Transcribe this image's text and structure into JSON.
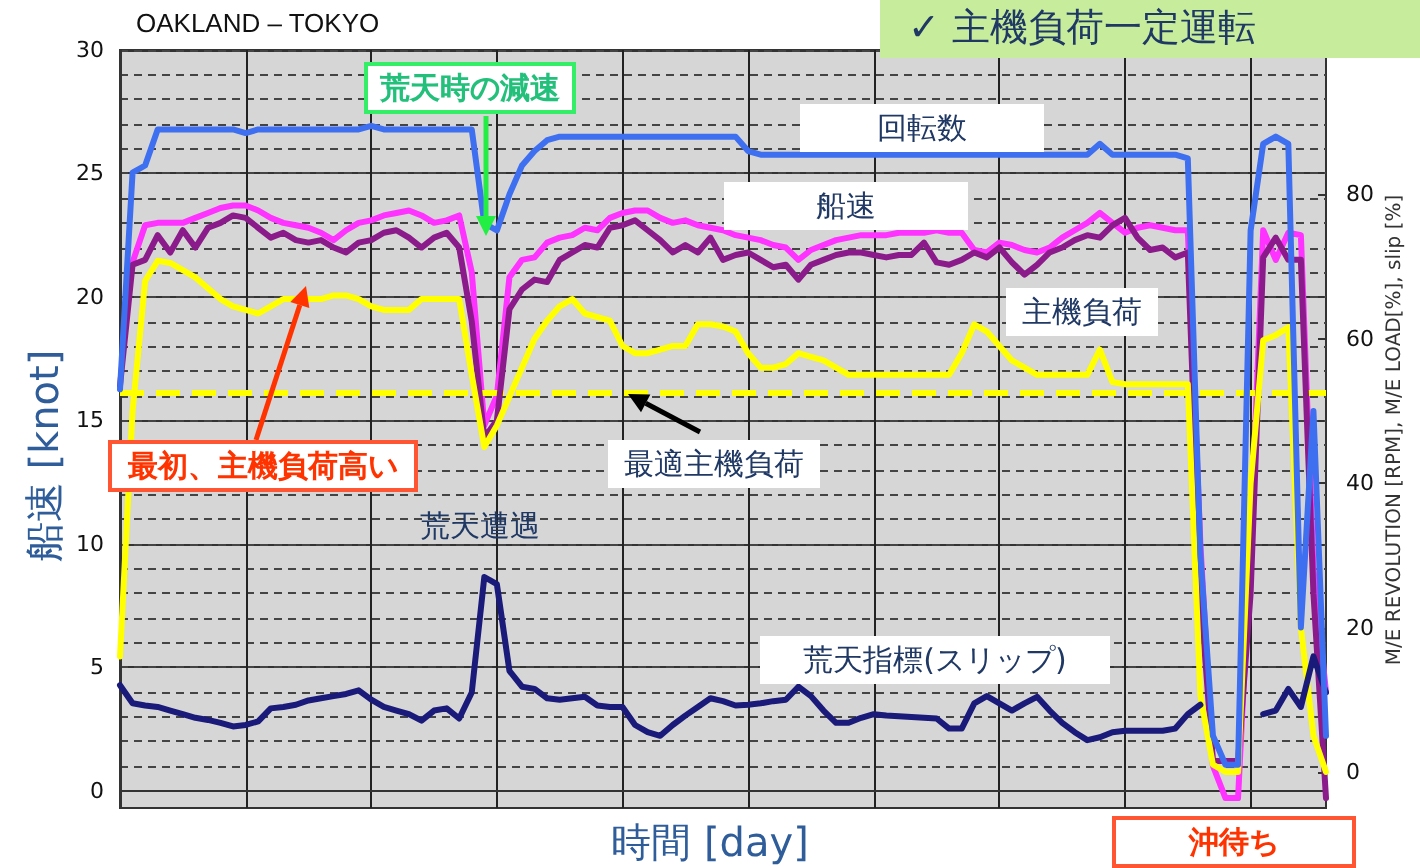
{
  "chart_data": {
    "type": "line",
    "title": "OAKLAND – TOKYO",
    "subtitle": "✓ 主機負荷一定運転",
    "xlabel": "時間 [day]",
    "ylabel": "船速 [knot]",
    "y2label": "M/E REVOLUTION [RPM], M/E LOAD[%], slip [%]",
    "categories": [
      null,
      null,
      null,
      null,
      null,
      null,
      null,
      null,
      null,
      null,
      null,
      null,
      null,
      null,
      null,
      null,
      null,
      null,
      null,
      null,
      null,
      null,
      null,
      null,
      null,
      null,
      null,
      null,
      null,
      null,
      null,
      null,
      null,
      null,
      null,
      null,
      null,
      null,
      null,
      null,
      null,
      null,
      null,
      null,
      null,
      null,
      null,
      null,
      null,
      null,
      null,
      null,
      null,
      null,
      null,
      null,
      null,
      null,
      null,
      null,
      null,
      null,
      null,
      null,
      null,
      null,
      null,
      null,
      null,
      null,
      null,
      null,
      null,
      null,
      null,
      null,
      null,
      null,
      null,
      null,
      null,
      null,
      null,
      null,
      null,
      null,
      null,
      null,
      null,
      null,
      null,
      null,
      null,
      null,
      null,
      null,
      null
    ],
    "series": [
      {
        "name": "回転数",
        "color": "#3d6ff0",
        "axis": "y2",
        "values": [
          53,
          83,
          84,
          89,
          89,
          89,
          89,
          89,
          89,
          89,
          88.5,
          89,
          89,
          89,
          89,
          89,
          89,
          89,
          89,
          89,
          89.5,
          89,
          89,
          89,
          89,
          89,
          89,
          89,
          89,
          76,
          75,
          80,
          84,
          86,
          87.5,
          88,
          88,
          88,
          88,
          88,
          88,
          88,
          88,
          88,
          88,
          88,
          88,
          88,
          88,
          88,
          86,
          85.5,
          85.5,
          85.5,
          85.5,
          85.5,
          85.5,
          85.5,
          85.5,
          85.5,
          85.5,
          85.5,
          85.5,
          85.5,
          85.5,
          85.5,
          85.5,
          85.5,
          85.5,
          85.5,
          85.5,
          85.5,
          85.5,
          85.5,
          85.5,
          85.5,
          85.5,
          85.5,
          87,
          85.5,
          85.5,
          85.5,
          85.5,
          85.5,
          85.5,
          85,
          30,
          5,
          1,
          1,
          75,
          87,
          88,
          87,
          20,
          50,
          5
        ]
      },
      {
        "name": "船速",
        "color": "#ff33ff",
        "axis": "y",
        "values": [
          null,
          21.4,
          22.9,
          23.0,
          23.0,
          23.0,
          23.2,
          23.4,
          23.6,
          23.7,
          23.7,
          23.5,
          23.2,
          23.0,
          22.9,
          22.8,
          22.6,
          22.3,
          22.7,
          23.0,
          23.1,
          23.3,
          23.4,
          23.5,
          23.3,
          23.0,
          23.1,
          23.3,
          21,
          14.8,
          16,
          20.8,
          21.5,
          21.6,
          22.2,
          22.4,
          22.5,
          22.8,
          22.7,
          23.2,
          23.4,
          23.5,
          23.5,
          23.2,
          23.0,
          23.1,
          22.9,
          22.8,
          22.7,
          22.5,
          22.4,
          22.3,
          22.1,
          22.0,
          21.5,
          21.9,
          22.1,
          22.3,
          22.4,
          22.5,
          22.5,
          22.5,
          22.6,
          22.6,
          22.6,
          22.7,
          22.6,
          22.6,
          21.9,
          21.8,
          22.2,
          22.1,
          21.9,
          21.8,
          22.0,
          22.4,
          22.7,
          23.0,
          23.4,
          23.0,
          22.6,
          22.8,
          22.9,
          22.8,
          22.7,
          22.7,
          10,
          1,
          -0.3,
          -0.3,
          10,
          22.7,
          21.5,
          22.6,
          22.5,
          9,
          4
        ]
      },
      {
        "color": "#8b1a8b",
        "axis": "y",
        "values": [
          16.4,
          21.3,
          21.5,
          22.5,
          21.8,
          22.7,
          22.0,
          22.8,
          23.0,
          23.3,
          23.2,
          22.8,
          22.4,
          22.6,
          22.3,
          22.2,
          22.3,
          22.0,
          21.8,
          22.2,
          22.3,
          22.6,
          22.7,
          22.4,
          22.0,
          22.4,
          22.6,
          22.0,
          19,
          14.3,
          15.0,
          19.5,
          20.3,
          20.7,
          20.6,
          21.5,
          21.8,
          22.1,
          22.0,
          22.8,
          22.9,
          23.1,
          22.7,
          22.3,
          21.8,
          22.1,
          21.8,
          22.4,
          21.5,
          21.7,
          21.8,
          21.5,
          21.2,
          21.3,
          20.7,
          21.3,
          21.5,
          21.7,
          21.8,
          21.8,
          21.7,
          21.6,
          21.7,
          21.7,
          22.2,
          21.4,
          21.3,
          21.5,
          21.8,
          21.6,
          22.0,
          21.4,
          20.9,
          21.3,
          21.8,
          22.0,
          22.3,
          22.5,
          22.4,
          22.9,
          23.2,
          22.4,
          21.9,
          22.0,
          21.6,
          21.8,
          8,
          1.2,
          1.2,
          1.2,
          8,
          21.6,
          22.4,
          21.5,
          21.5,
          8,
          -0.3
        ]
      },
      {
        "name": "主機負荷",
        "color": "#ffff00",
        "axis": "y2",
        "values": [
          16,
          50,
          68,
          70.8,
          70.5,
          69.5,
          68.5,
          67,
          65.5,
          64.5,
          64,
          63.5,
          64.5,
          65.5,
          65.5,
          65.5,
          65.5,
          66,
          66,
          65.5,
          64.5,
          64,
          64,
          64,
          65.5,
          65.5,
          65.5,
          65.5,
          55,
          45,
          48,
          52,
          56,
          60,
          62.5,
          64.5,
          65.5,
          63.5,
          63,
          62.5,
          59,
          58,
          58,
          58.5,
          59,
          59,
          62,
          62,
          61.7,
          61,
          58,
          56,
          56,
          56.5,
          58,
          57.5,
          57,
          56,
          55,
          55,
          55,
          55,
          55,
          55,
          55,
          55,
          55,
          58,
          62,
          61,
          59,
          57,
          56,
          55,
          55,
          55,
          55,
          55,
          58.5,
          54,
          53.7,
          53.7,
          53.7,
          53.7,
          53.7,
          53.7,
          10.6,
          1,
          0,
          0,
          40,
          59.8,
          60.5,
          61.6,
          20,
          5,
          0
        ]
      },
      {
        "name": "荒天指標(スリップ)",
        "color": "#1a1a7a",
        "axis": "y2",
        "values": [
          12,
          9.5,
          9.2,
          9,
          8.5,
          8,
          7.5,
          7.2,
          6.8,
          6.3,
          6.5,
          7,
          8.8,
          9,
          9.3,
          9.9,
          10.2,
          10.5,
          10.8,
          11.3,
          10,
          9,
          8.5,
          8,
          7.1,
          8.5,
          8.8,
          7.4,
          11,
          27,
          26,
          14,
          11.8,
          11.5,
          10.2,
          10,
          10.2,
          10.4,
          9.2,
          9,
          9,
          6.5,
          5.5,
          5,
          6.5,
          7.8,
          9,
          10.2,
          9.8,
          9.2,
          9.3,
          9.5,
          9.8,
          10,
          11.8,
          10.5,
          8.5,
          6.8,
          6.8,
          7.5,
          8,
          7.8,
          7.7,
          7.6,
          7.5,
          7.4,
          6,
          6,
          9.5,
          10.5,
          9.5,
          8.5,
          9.5,
          10.4,
          8.5,
          6.8,
          5.5,
          4.4,
          4.8,
          5.5,
          5.7,
          5.7,
          5.7,
          5.7,
          6,
          8,
          9.3,
          null,
          null,
          null,
          null,
          8,
          8.5,
          11.5,
          9,
          16,
          11
        ]
      }
    ],
    "ylim": [
      -0.7,
      30
    ],
    "yticks": [
      0,
      5,
      10,
      15,
      20,
      25,
      30
    ],
    "y2lim": [
      -5,
      100
    ],
    "y2ticks": [
      0,
      20,
      40,
      60,
      80
    ],
    "ref_lines": [
      {
        "axis": "y2",
        "value": 52.5,
        "label": "最適主機負荷",
        "color": "#ffff00",
        "line_style": "dashed"
      }
    ],
    "annotations": [
      "荒天時の減速",
      "最初、主機負荷高い",
      "荒天遭遇",
      "沖待ち"
    ],
    "grid": true
  }
}
